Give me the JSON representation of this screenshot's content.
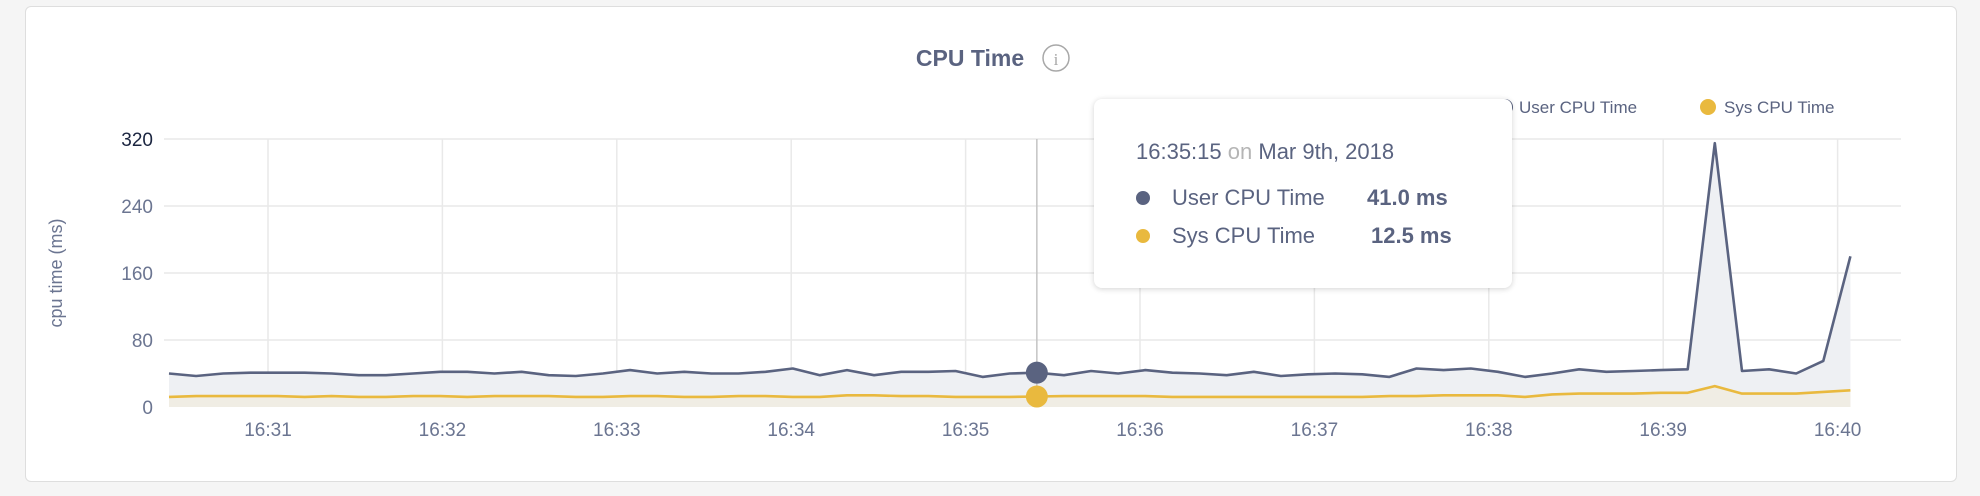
{
  "chart_data": {
    "type": "area",
    "title": "CPU Time",
    "ylabel": "cpu time (ms)",
    "xlabel": "",
    "ylim": [
      0,
      320
    ],
    "yticks": [
      "0",
      "80",
      "160",
      "240",
      "320"
    ],
    "xticks": [
      "16:31",
      "16:32",
      "16:33",
      "16:34",
      "16:35",
      "16:36",
      "16:37",
      "16:38",
      "16:39",
      "16:40"
    ],
    "grid": true,
    "legend_position": "top-right",
    "x_interval_seconds": 10,
    "series": [
      {
        "name": "User CPU Time",
        "color": "#5a6380",
        "values": [
          40,
          37,
          40,
          41,
          41,
          41,
          40,
          38,
          38,
          40,
          42,
          42,
          40,
          42,
          38,
          37,
          40,
          44,
          40,
          42,
          40,
          40,
          42,
          46,
          38,
          44,
          38,
          42,
          42,
          43,
          36,
          40,
          41,
          38,
          43,
          40,
          44,
          41,
          40,
          38,
          42,
          37,
          39,
          40,
          39,
          36,
          46,
          44,
          46,
          42,
          36,
          40,
          45,
          42,
          43,
          44,
          45,
          315,
          43,
          45,
          40,
          55,
          180
        ]
      },
      {
        "name": "Sys CPU Time",
        "color": "#e9b93e",
        "values": [
          12,
          13,
          13,
          13,
          13,
          12,
          13,
          12,
          12,
          13,
          13,
          12,
          13,
          13,
          13,
          12,
          12,
          13,
          13,
          12,
          12,
          13,
          13,
          12,
          12,
          14,
          14,
          13,
          13,
          12,
          12,
          12,
          12.5,
          13,
          13,
          13,
          13,
          12,
          12,
          12,
          12,
          12,
          12,
          12,
          12,
          13,
          13,
          14,
          14,
          14,
          12,
          15,
          16,
          16,
          16,
          17,
          17,
          25,
          16,
          16,
          16,
          18,
          20
        ]
      }
    ],
    "hover_index": 32
  },
  "header": {
    "title": "CPU Time",
    "info_icon": "info-circle-icon"
  },
  "tooltip": {
    "time": "16:35:15",
    "on": "on",
    "date": "Mar 9th, 2018",
    "rows": [
      {
        "label": "User CPU Time",
        "value": "41.0 ms",
        "color": "#5a6380"
      },
      {
        "label": "Sys CPU Time",
        "value": "12.5 ms",
        "color": "#e9b93e"
      }
    ]
  }
}
